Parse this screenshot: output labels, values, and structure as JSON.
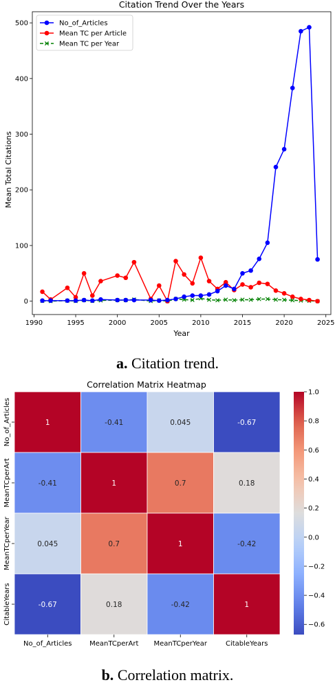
{
  "figure_a": {
    "caption_letter": "a.",
    "caption_text": "Citation trend."
  },
  "figure_b": {
    "caption_letter": "b.",
    "caption_text": "Correlation matrix."
  },
  "chart_data": [
    {
      "type": "line",
      "title": "Citation Trend Over the Years",
      "xlabel": "Year",
      "ylabel": "Mean Total Citations",
      "xlim": [
        1989.8,
        2025.6
      ],
      "ylim": [
        -24,
        520
      ],
      "xticks": [
        1990,
        1995,
        2000,
        2005,
        2010,
        2015,
        2020,
        2025
      ],
      "yticks": [
        0,
        100,
        200,
        300,
        400,
        500
      ],
      "legend_position": "top-left",
      "series": [
        {
          "name": "No_of_Articles",
          "color": "#0000ff",
          "marker": "circle",
          "linestyle": "solid",
          "x": [
            1991,
            1992,
            1994,
            1995,
            1996,
            1997,
            1998,
            2000,
            2001,
            2002,
            2004,
            2005,
            2006,
            2007,
            2008,
            2009,
            2010,
            2011,
            2012,
            2013,
            2014,
            2015,
            2016,
            2017,
            2018,
            2019,
            2020,
            2021,
            2022,
            2023,
            2024
          ],
          "y": [
            1,
            1,
            1,
            1,
            2,
            1,
            3,
            2,
            2,
            2,
            2,
            1,
            2,
            4,
            8,
            10,
            10,
            12,
            18,
            28,
            22,
            50,
            55,
            76,
            105,
            241,
            273,
            383,
            485,
            492,
            75
          ]
        },
        {
          "name": "Mean TC per Article",
          "color": "#ff0000",
          "marker": "circle",
          "linestyle": "solid",
          "x": [
            1991,
            1992,
            1994,
            1995,
            1996,
            1997,
            1998,
            2000,
            2001,
            2002,
            2004,
            2005,
            2006,
            2007,
            2008,
            2009,
            2010,
            2011,
            2012,
            2013,
            2014,
            2015,
            2016,
            2017,
            2018,
            2019,
            2020,
            2021,
            2022,
            2023,
            2024
          ],
          "y": [
            17,
            3,
            24,
            7,
            50,
            10,
            36,
            46,
            42,
            70,
            4,
            28,
            0,
            72,
            48,
            32,
            78,
            36,
            22,
            34,
            20,
            30,
            25,
            33,
            31,
            19,
            14,
            8,
            4,
            2,
            0
          ]
        },
        {
          "name": "Mean TC per Year",
          "color": "#008000",
          "marker": "x",
          "linestyle": "dashed",
          "x": [
            1991,
            1992,
            1994,
            1995,
            1996,
            1997,
            1998,
            2000,
            2001,
            2002,
            2004,
            2005,
            2006,
            2007,
            2008,
            2009,
            2010,
            2011,
            2012,
            2013,
            2014,
            2015,
            2016,
            2017,
            2018,
            2019,
            2020,
            2021,
            2022,
            2023,
            2024
          ],
          "y": [
            0.5,
            0.1,
            0.8,
            0.2,
            1.7,
            0.4,
            1.3,
            1.9,
            1.8,
            3.0,
            0.2,
            1.4,
            0,
            4.0,
            2.8,
            2.0,
            5.0,
            2.5,
            1.6,
            2.7,
            1.7,
            2.7,
            2.5,
            3.7,
            3.9,
            2.7,
            2.4,
            1.6,
            1.0,
            0.7,
            0
          ]
        }
      ]
    },
    {
      "type": "heatmap",
      "title": "Correlation Matrix Heatmap",
      "colormap": "coolwarm",
      "vmin": -0.67,
      "vmax": 1.0,
      "row_labels": [
        "No_of_Articles",
        "MeanTCperArt",
        "MeanTCperYear",
        "CitableYears"
      ],
      "col_labels": [
        "No_of_Articles",
        "MeanTCperArt",
        "MeanTCperYear",
        "CitableYears"
      ],
      "values": [
        [
          1,
          -0.41,
          0.045,
          -0.67
        ],
        [
          -0.41,
          1,
          0.7,
          0.18
        ],
        [
          0.045,
          0.7,
          1,
          -0.42
        ],
        [
          -0.67,
          0.18,
          -0.42,
          1
        ]
      ],
      "cell_labels": [
        [
          "1",
          "-0.41",
          "0.045",
          "-0.67"
        ],
        [
          "-0.41",
          "1",
          "0.7",
          "0.18"
        ],
        [
          "0.045",
          "0.7",
          "1",
          "-0.42"
        ],
        [
          "-0.67",
          "0.18",
          "-0.42",
          "1"
        ]
      ],
      "colorbar_ticks": [
        1.0,
        0.8,
        0.6,
        0.4,
        0.2,
        0.0,
        -0.2,
        -0.4,
        -0.6
      ],
      "colorbar_tick_labels": [
        "1.0",
        "0.8",
        "0.6",
        "0.4",
        "0.2",
        "0.0",
        "−0.2",
        "−0.4",
        "−0.6"
      ]
    }
  ]
}
